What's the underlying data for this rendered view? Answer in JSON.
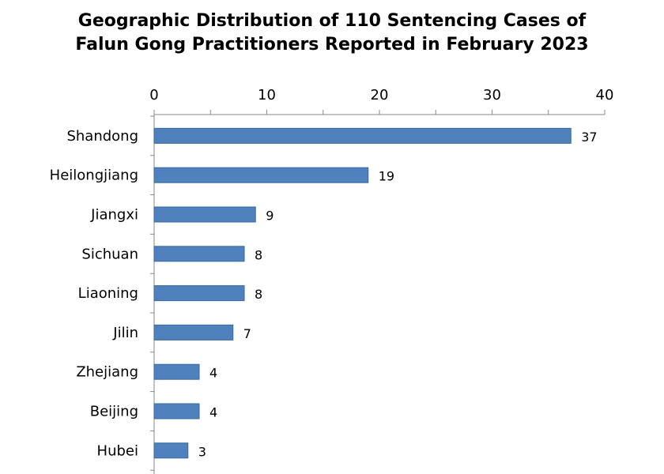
{
  "chart_data": {
    "type": "bar",
    "orientation": "horizontal",
    "title_lines": [
      "Geographic Distribution of 110 Sentencing Cases of",
      "Falun Gong Practitioners Reported in February 2023"
    ],
    "categories": [
      "Shandong",
      "Heilongjiang",
      "Jiangxi",
      "Sichuan",
      "Liaoning",
      "Jilin",
      "Zhejiang",
      "Beijing",
      "Hubei"
    ],
    "values": [
      37,
      19,
      9,
      8,
      8,
      7,
      4,
      4,
      3
    ],
    "xlim": [
      0,
      40
    ],
    "x_ticks": [
      0,
      10,
      20,
      30,
      40
    ],
    "x_axis_position": "top",
    "grid": false,
    "legend": "none",
    "bar_color": "#4f81bd",
    "bar_border_color": "#3a6aa0"
  }
}
